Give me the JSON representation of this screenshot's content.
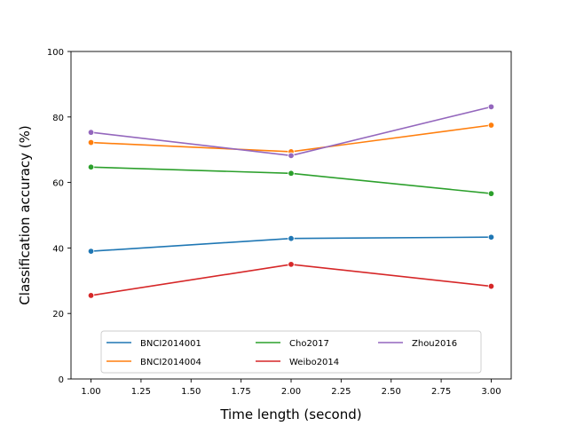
{
  "chart_data": {
    "type": "line",
    "title": "",
    "xlabel": "Time length (second)",
    "ylabel": "Classification accuracy (%)",
    "xlim": [
      0.9,
      3.1
    ],
    "ylim": [
      0,
      100
    ],
    "xticks": [
      "1.00",
      "1.25",
      "1.50",
      "1.75",
      "2.00",
      "2.25",
      "2.50",
      "2.75",
      "3.00"
    ],
    "yticks": [
      "0",
      "20",
      "40",
      "60",
      "80",
      "100"
    ],
    "x": [
      1.0,
      2.0,
      3.0
    ],
    "grid": false,
    "legend_position": "lower-center",
    "series": [
      {
        "name": "BNCI2014001",
        "color": "#1f77b4",
        "values": [
          39.0,
          42.9,
          43.3
        ]
      },
      {
        "name": "BNCI2014004",
        "color": "#ff7f0e",
        "values": [
          72.2,
          69.4,
          77.5
        ]
      },
      {
        "name": "Cho2017",
        "color": "#2ca02c",
        "values": [
          64.7,
          62.8,
          56.6
        ]
      },
      {
        "name": "Weibo2014",
        "color": "#d62728",
        "values": [
          25.5,
          35.0,
          28.3
        ]
      },
      {
        "name": "Zhou2016",
        "color": "#9467bd",
        "values": [
          75.3,
          68.2,
          83.1
        ]
      }
    ]
  }
}
